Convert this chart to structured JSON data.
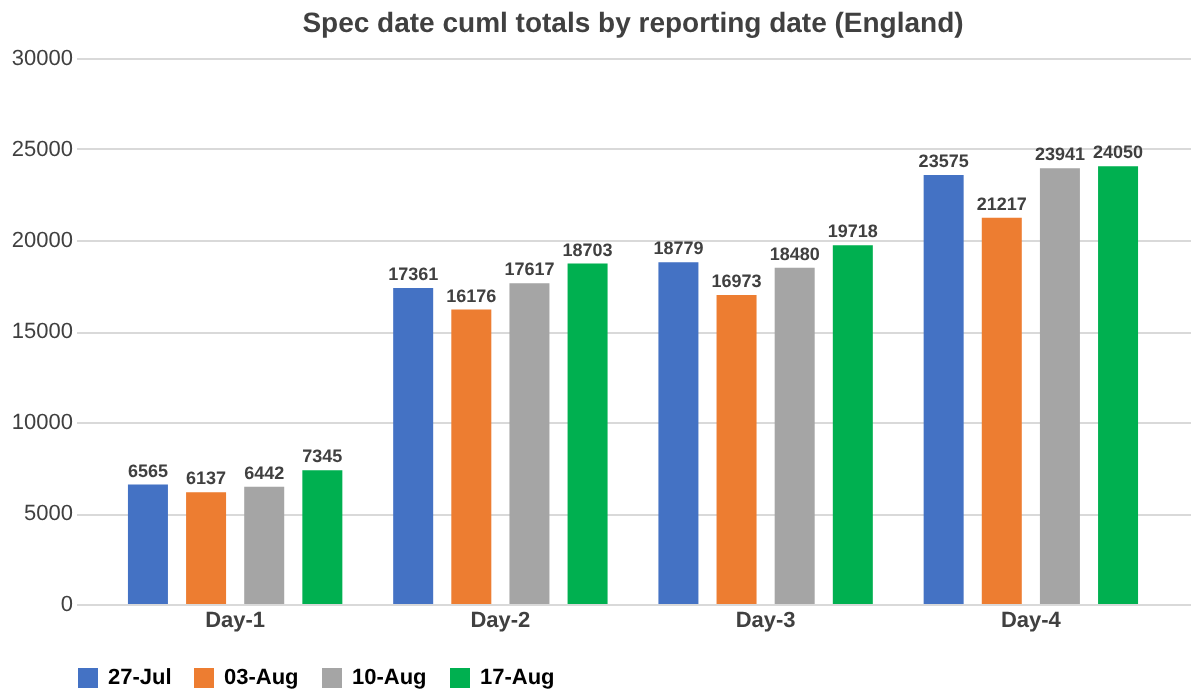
{
  "chart_data": {
    "type": "bar",
    "title": "Spec date cuml totals by reporting date (England)",
    "categories": [
      "Day-1",
      "Day-2",
      "Day-3",
      "Day-4"
    ],
    "series": [
      {
        "name": "27-Jul",
        "color": "#4472c4",
        "values": [
          6565,
          17361,
          18779,
          23575
        ]
      },
      {
        "name": "03-Aug",
        "color": "#ed7d31",
        "values": [
          6137,
          16176,
          16973,
          21217
        ]
      },
      {
        "name": "10-Aug",
        "color": "#a5a5a5",
        "values": [
          6442,
          17617,
          18480,
          23941
        ]
      },
      {
        "name": "17-Aug",
        "color": "#00b050",
        "values": [
          7345,
          18703,
          19718,
          24050
        ]
      }
    ],
    "ylim": [
      0,
      30000
    ],
    "yticks": [
      0,
      5000,
      10000,
      15000,
      20000,
      25000,
      30000
    ],
    "grid": "y",
    "legend": "bottom",
    "data_labels": true
  }
}
